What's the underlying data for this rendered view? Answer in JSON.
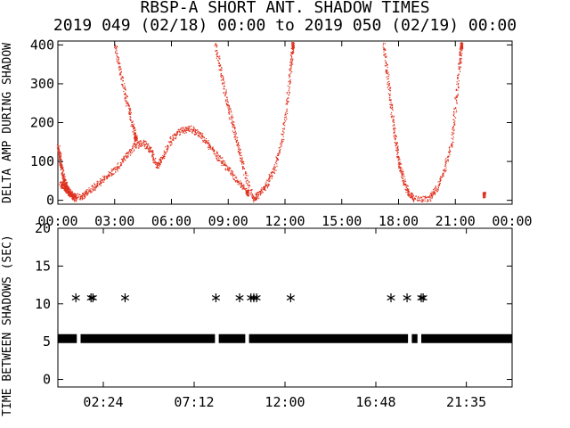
{
  "title_line1": "RBSP-A SHORT ANT. SHADOW TIMES",
  "title_line2": "2019 049 (02/18) 00:00 to 2019 050 (02/19) 00:00",
  "colors": {
    "top_points": "#e0301e",
    "bottom_points": "#000000"
  },
  "chart_data": [
    {
      "type": "scatter",
      "ylabel": "DELTA AMP DURING SHADOW",
      "xlim": [
        "00:00",
        "24:00"
      ],
      "ylim": [
        -10,
        410
      ],
      "x_tick_labels": [
        "00:00",
        "03:00",
        "06:00",
        "09:00",
        "12:00",
        "15:00",
        "18:00",
        "21:00",
        "00:00"
      ],
      "y_tick_labels": [
        "0",
        "100",
        "200",
        "300",
        "400"
      ],
      "series": [
        {
          "description_points_hour_value": [
            [
              0.0,
              140
            ],
            [
              0.1,
              110
            ],
            [
              0.2,
              80
            ],
            [
              0.3,
              55
            ],
            [
              0.4,
              40
            ],
            [
              0.5,
              30
            ],
            [
              0.7,
              15
            ],
            [
              0.9,
              5
            ],
            [
              0.1,
              45
            ],
            [
              0.3,
              35
            ],
            [
              0.5,
              25
            ],
            [
              0.7,
              15
            ],
            [
              1.2,
              10
            ],
            [
              1.5,
              20
            ],
            [
              2.0,
              40
            ],
            [
              2.5,
              60
            ],
            [
              3.0,
              80
            ],
            [
              3.5,
              110
            ],
            [
              4.0,
              140
            ],
            [
              4.5,
              150
            ],
            [
              4.9,
              130
            ],
            [
              5.2,
              90
            ],
            [
              5.5,
              110
            ],
            [
              6.0,
              160
            ],
            [
              6.5,
              180
            ],
            [
              7.0,
              185
            ],
            [
              7.5,
              170
            ],
            [
              8.0,
              140
            ],
            [
              8.5,
              110
            ],
            [
              9.0,
              80
            ],
            [
              9.5,
              50
            ],
            [
              10.0,
              20
            ],
            [
              3.0,
              400
            ],
            [
              3.3,
              330
            ],
            [
              3.6,
              260
            ],
            [
              3.9,
              200
            ],
            [
              4.1,
              160
            ],
            [
              8.3,
              400
            ],
            [
              8.6,
              330
            ],
            [
              8.9,
              260
            ],
            [
              9.2,
              200
            ],
            [
              9.5,
              140
            ],
            [
              9.8,
              80
            ],
            [
              10.3,
              5
            ],
            [
              10.6,
              15
            ],
            [
              11.0,
              40
            ],
            [
              11.4,
              80
            ],
            [
              11.8,
              150
            ],
            [
              12.1,
              250
            ],
            [
              12.3,
              350
            ],
            [
              12.4,
              400
            ],
            [
              17.2,
              400
            ],
            [
              17.4,
              320
            ],
            [
              17.6,
              240
            ],
            [
              17.8,
              160
            ],
            [
              18.0,
              100
            ],
            [
              18.2,
              60
            ],
            [
              18.5,
              20
            ],
            [
              18.8,
              5
            ],
            [
              19.6,
              5
            ],
            [
              20.0,
              30
            ],
            [
              20.4,
              80
            ],
            [
              20.8,
              150
            ],
            [
              21.0,
              250
            ],
            [
              21.2,
              350
            ],
            [
              21.3,
              400
            ],
            [
              22.5,
              15
            ]
          ]
        }
      ]
    },
    {
      "type": "scatter",
      "ylabel": "TIME BETWEEN SHADOWS (SEC)",
      "xlim": [
        "00:00",
        "24:00"
      ],
      "ylim": [
        -1,
        20
      ],
      "x_tick_labels": [
        "02:24",
        "07:12",
        "12:00",
        "16:48",
        "21:35"
      ],
      "y_tick_labels": [
        "0",
        "5",
        "10",
        "15",
        "20"
      ],
      "series": [
        {
          "baseline_value": 5.4,
          "baseline_gaps_hours": [
            [
              1.0,
              1.2
            ],
            [
              8.3,
              8.5
            ],
            [
              9.9,
              10.1
            ],
            [
              18.5,
              18.7
            ],
            [
              19.0,
              19.2
            ]
          ],
          "outlier_value": 10.8,
          "outlier_hours": [
            0.95,
            1.75,
            1.85,
            3.55,
            8.35,
            9.6,
            10.2,
            10.35,
            10.5,
            12.3,
            17.6,
            18.45,
            19.2,
            19.3
          ]
        }
      ]
    }
  ]
}
